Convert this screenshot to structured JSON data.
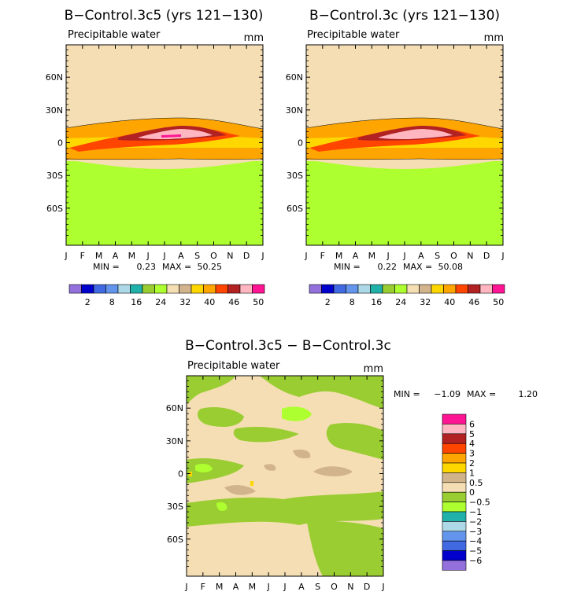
{
  "months": [
    "J",
    "F",
    "M",
    "A",
    "M",
    "J",
    "J",
    "A",
    "S",
    "O",
    "N",
    "D",
    "J"
  ],
  "lat_ticks": [
    "60N",
    "30N",
    "0",
    "30S",
    "60S"
  ],
  "panels": [
    {
      "id": "c5",
      "title": "B−Control.3c5 (yrs 121−130)",
      "variable": "Precipitable water",
      "units": "mm",
      "stats": {
        "min_label": "MIN =",
        "min": "0.23",
        "max_label": "MAX =",
        "max": "50.25"
      },
      "colorbar_labels": [
        "2",
        "8",
        "16",
        "24",
        "32",
        "40",
        "46",
        "50"
      ]
    },
    {
      "id": "c",
      "title": "B−Control.3c (yrs 121−130)",
      "variable": "Precipitable water",
      "units": "mm",
      "stats": {
        "min_label": "MIN =",
        "min": "0.22",
        "max_label": "MAX =",
        "max": "50.08"
      },
      "colorbar_labels": [
        "2",
        "8",
        "16",
        "24",
        "32",
        "40",
        "46",
        "50"
      ]
    }
  ],
  "diff": {
    "title": "B−Control.3c5 − B−Control.3c",
    "variable": "Precipitable water",
    "units": "mm",
    "stats": {
      "min_label": "MIN =",
      "min": "−1.09",
      "max_label": "MAX =",
      "max": "1.20"
    },
    "colorbar_labels": [
      "6",
      "5",
      "4",
      "3",
      "2",
      "1",
      "0.5",
      "0",
      "−0.5",
      "−1",
      "−2",
      "−3",
      "−4",
      "−5",
      "−6"
    ]
  },
  "palette": [
    "#9370DB",
    "#0000CD",
    "#4169E1",
    "#6495ED",
    "#ADD8E6",
    "#20B2AA",
    "#9ACD32",
    "#ADFF2F",
    "#F5DEB3",
    "#D2B48C",
    "#FFD700",
    "#FFA500",
    "#FF4500",
    "#B22222",
    "#FFB6C1",
    "#FF1493"
  ],
  "chart_data": [
    {
      "type": "heatmap",
      "title": "B−Control.3c5 (yrs 121−130)",
      "subtitle": "Precipitable water",
      "units": "mm",
      "xlabel": "month",
      "ylabel": "latitude",
      "x_categories": [
        "J",
        "F",
        "M",
        "A",
        "M",
        "J",
        "J",
        "A",
        "S",
        "O",
        "N",
        "D",
        "J"
      ],
      "y_range": [
        -90,
        90
      ],
      "contour_levels": [
        2,
        5,
        8,
        12,
        16,
        20,
        24,
        28,
        32,
        36,
        40,
        43,
        46,
        48,
        50
      ],
      "min": 0.23,
      "max": 50.25
    },
    {
      "type": "heatmap",
      "title": "B−Control.3c (yrs 121−130)",
      "subtitle": "Precipitable water",
      "units": "mm",
      "xlabel": "month",
      "ylabel": "latitude",
      "x_categories": [
        "J",
        "F",
        "M",
        "A",
        "M",
        "J",
        "J",
        "A",
        "S",
        "O",
        "N",
        "D",
        "J"
      ],
      "y_range": [
        -90,
        90
      ],
      "contour_levels": [
        2,
        5,
        8,
        12,
        16,
        20,
        24,
        28,
        32,
        36,
        40,
        43,
        46,
        48,
        50
      ],
      "min": 0.22,
      "max": 50.08
    },
    {
      "type": "heatmap",
      "title": "B−Control.3c5 − B−Control.3c",
      "subtitle": "Precipitable water",
      "units": "mm",
      "xlabel": "month",
      "ylabel": "latitude",
      "x_categories": [
        "J",
        "F",
        "M",
        "A",
        "M",
        "J",
        "J",
        "A",
        "S",
        "O",
        "N",
        "D",
        "J"
      ],
      "y_range": [
        -90,
        90
      ],
      "contour_levels": [
        -6,
        -5,
        -4,
        -3,
        -2,
        -1,
        -0.5,
        0,
        0.5,
        1,
        2,
        3,
        4,
        5,
        6
      ],
      "min": -1.09,
      "max": 1.2
    }
  ]
}
